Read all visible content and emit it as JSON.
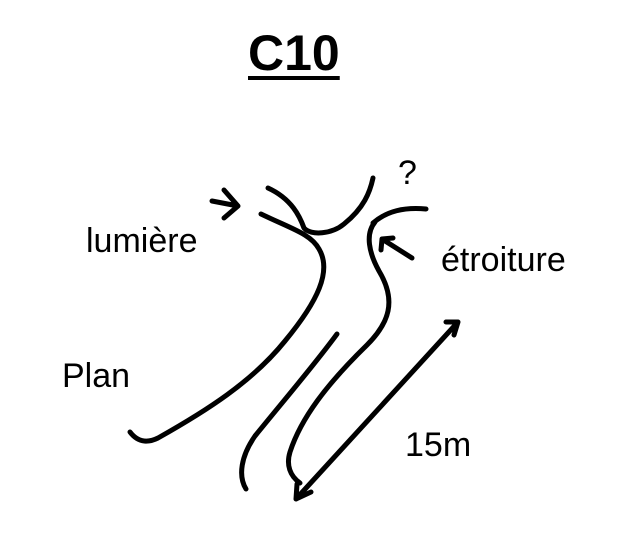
{
  "title": "C10",
  "labels": {
    "lumiere": "lumière",
    "etroiture": "étroiture",
    "unknown": "?",
    "plan": "Plan",
    "distance": "15m"
  },
  "colors": {
    "background": "#ffffff",
    "ink": "#000000"
  },
  "icons": {
    "light_arrow": "arrow-right-icon",
    "narrowing_arrow": "arrow-left-icon",
    "measurement_arrow": "double-arrow-icon"
  }
}
